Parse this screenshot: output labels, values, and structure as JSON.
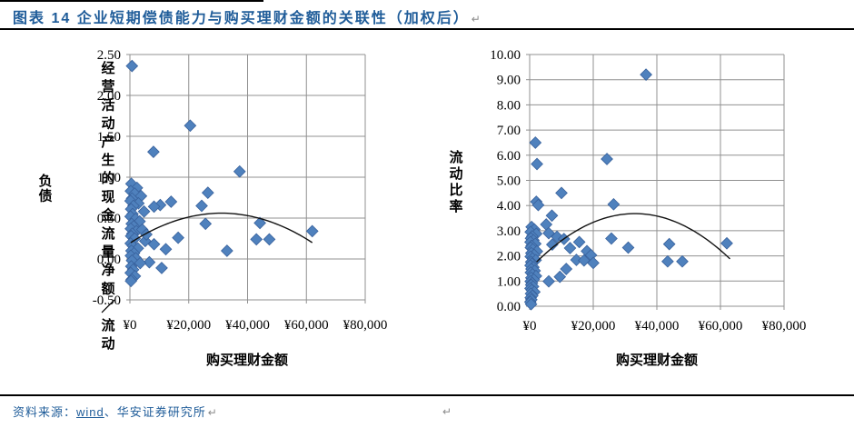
{
  "header": {
    "title": "图表 14  企业短期偿债能力与购买理财金额的关联性（加权后）",
    "paragraph_mark": "↵"
  },
  "footer": {
    "source_prefix": "资料来源：",
    "source_link": "wind",
    "source_suffix": "、华安证券研究所",
    "paragraph_mark": "↵"
  },
  "colors": {
    "title_blue": "#1F5C99",
    "marker_fill": "#4F81BD",
    "marker_stroke": "#38619C",
    "grid": "#909090",
    "trend": "#111111"
  },
  "chart_data": [
    {
      "type": "scatter",
      "title": "",
      "ylabel": "经营活动产生的现金流量净额/流动负债",
      "ylabel_columns": [
        "经营活动产生的现金流量净额／流动",
        "负债"
      ],
      "xlabel": "购买理财金额",
      "xlim": [
        0,
        80000
      ],
      "ylim": [
        -0.5,
        2.5
      ],
      "ytick_labels": [
        "2.50",
        "2.00",
        "1.50",
        "1.00",
        "0.50",
        "0.00",
        "-0.50"
      ],
      "xtick_values": [
        0,
        20000,
        40000,
        60000,
        80000
      ],
      "xtick_labels": [
        "¥0",
        "¥20,000",
        "¥40,000",
        "¥60,000",
        "¥80,000"
      ],
      "grid": true,
      "legend": "none",
      "trend_anchors": [
        [
          300,
          0.2
        ],
        [
          31000,
          0.56
        ],
        [
          62000,
          0.2
        ]
      ],
      "points": [
        [
          700,
          2.36
        ],
        [
          8000,
          1.31
        ],
        [
          20500,
          1.63
        ],
        [
          37300,
          1.07
        ],
        [
          26500,
          0.81
        ],
        [
          24400,
          0.65
        ],
        [
          25700,
          0.43
        ],
        [
          44200,
          0.44
        ],
        [
          43000,
          0.24
        ],
        [
          47400,
          0.24
        ],
        [
          62000,
          0.34
        ],
        [
          33000,
          0.1
        ],
        [
          16400,
          0.26
        ],
        [
          12200,
          0.12
        ],
        [
          10800,
          -0.11
        ],
        [
          6600,
          -0.04
        ],
        [
          10300,
          0.66
        ],
        [
          14000,
          0.7
        ],
        [
          8200,
          0.64
        ],
        [
          8200,
          0.18
        ],
        [
          500,
          0.92
        ],
        [
          2400,
          0.87
        ],
        [
          300,
          0.83
        ],
        [
          1600,
          0.8
        ],
        [
          3800,
          0.77
        ],
        [
          700,
          0.74
        ],
        [
          200,
          0.71
        ],
        [
          2900,
          0.68
        ],
        [
          1200,
          0.65
        ],
        [
          400,
          0.61
        ],
        [
          4800,
          0.58
        ],
        [
          900,
          0.55
        ],
        [
          200,
          0.52
        ],
        [
          1900,
          0.49
        ],
        [
          3300,
          0.46
        ],
        [
          600,
          0.43
        ],
        [
          1300,
          0.4
        ],
        [
          300,
          0.37
        ],
        [
          2200,
          0.34
        ],
        [
          800,
          0.31
        ],
        [
          400,
          0.28
        ],
        [
          1600,
          0.25
        ],
        [
          5200,
          0.22
        ],
        [
          250,
          0.19
        ],
        [
          1000,
          0.16
        ],
        [
          2700,
          0.13
        ],
        [
          500,
          0.1
        ],
        [
          1400,
          0.07
        ],
        [
          300,
          0.04
        ],
        [
          2000,
          0.01
        ],
        [
          700,
          -0.02
        ],
        [
          3500,
          -0.05
        ],
        [
          450,
          -0.09
        ],
        [
          1100,
          -0.13
        ],
        [
          250,
          -0.17
        ],
        [
          1700,
          -0.21
        ],
        [
          600,
          -0.25
        ],
        [
          350,
          -0.27
        ],
        [
          4200,
          0.36
        ],
        [
          5600,
          0.3
        ]
      ]
    },
    {
      "type": "scatter",
      "title": "",
      "ylabel": "流动比率",
      "ylabel_columns": [
        "流动比率"
      ],
      "xlabel": "购买理财金额",
      "xlim": [
        0,
        80000
      ],
      "ylim": [
        0,
        10
      ],
      "ytick_labels": [
        "10.00",
        "9.00",
        "8.00",
        "7.00",
        "6.00",
        "5.00",
        "4.00",
        "3.00",
        "2.00",
        "1.00",
        "0.00"
      ],
      "xtick_values": [
        0,
        20000,
        40000,
        60000,
        80000
      ],
      "xtick_labels": [
        "¥0",
        "¥20,000",
        "¥40,000",
        "¥60,000",
        "¥80,000"
      ],
      "grid": true,
      "legend": "none",
      "trend_anchors": [
        [
          2200,
          1.76
        ],
        [
          33000,
          3.68
        ],
        [
          63000,
          1.88
        ]
      ],
      "points": [
        [
          36600,
          9.2
        ],
        [
          24300,
          5.85
        ],
        [
          1800,
          6.5
        ],
        [
          2300,
          5.65
        ],
        [
          10000,
          4.5
        ],
        [
          2100,
          4.15
        ],
        [
          2700,
          4.02
        ],
        [
          26400,
          4.05
        ],
        [
          7000,
          3.6
        ],
        [
          5200,
          3.25
        ],
        [
          6000,
          2.9
        ],
        [
          8600,
          2.76
        ],
        [
          10800,
          2.67
        ],
        [
          7100,
          2.45
        ],
        [
          12700,
          2.31
        ],
        [
          15600,
          2.55
        ],
        [
          18000,
          2.19
        ],
        [
          14700,
          1.84
        ],
        [
          19300,
          2.03
        ],
        [
          17100,
          1.82
        ],
        [
          20000,
          1.72
        ],
        [
          11500,
          1.48
        ],
        [
          9500,
          1.17
        ],
        [
          6000,
          0.99
        ],
        [
          25700,
          2.69
        ],
        [
          31000,
          2.33
        ],
        [
          43900,
          2.47
        ],
        [
          62000,
          2.5
        ],
        [
          43400,
          1.78
        ],
        [
          48000,
          1.78
        ],
        [
          600,
          3.15
        ],
        [
          1500,
          3.05
        ],
        [
          300,
          2.95
        ],
        [
          2100,
          2.88
        ],
        [
          800,
          2.78
        ],
        [
          400,
          2.7
        ],
        [
          1200,
          2.62
        ],
        [
          250,
          2.55
        ],
        [
          1800,
          2.48
        ],
        [
          600,
          2.4
        ],
        [
          350,
          2.33
        ],
        [
          1000,
          2.26
        ],
        [
          2300,
          2.18
        ],
        [
          500,
          2.11
        ],
        [
          1400,
          2.04
        ],
        [
          300,
          1.97
        ],
        [
          900,
          1.9
        ],
        [
          1900,
          1.83
        ],
        [
          450,
          1.76
        ],
        [
          700,
          1.69
        ],
        [
          250,
          1.62
        ],
        [
          1200,
          1.55
        ],
        [
          550,
          1.48
        ],
        [
          1600,
          1.41
        ],
        [
          350,
          1.34
        ],
        [
          900,
          1.27
        ],
        [
          2000,
          1.2
        ],
        [
          500,
          1.13
        ],
        [
          1300,
          1.06
        ],
        [
          300,
          0.99
        ],
        [
          750,
          0.92
        ],
        [
          450,
          0.85
        ],
        [
          1100,
          0.78
        ],
        [
          250,
          0.71
        ],
        [
          650,
          0.64
        ],
        [
          1500,
          0.57
        ],
        [
          400,
          0.5
        ],
        [
          850,
          0.42
        ],
        [
          300,
          0.34
        ],
        [
          550,
          0.26
        ],
        [
          200,
          0.17
        ],
        [
          450,
          0.08
        ]
      ]
    }
  ]
}
